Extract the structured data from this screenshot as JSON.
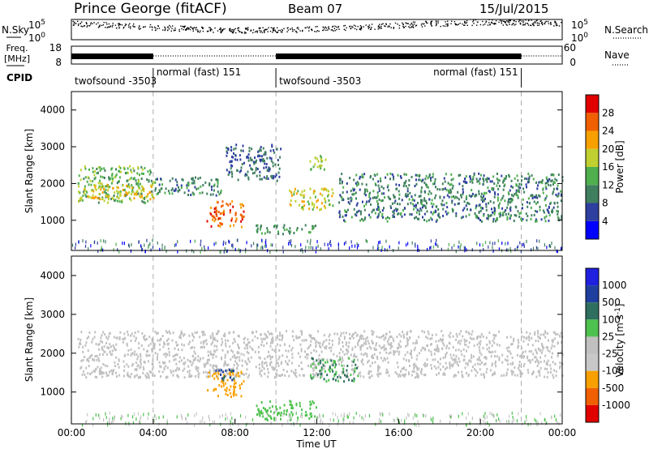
{
  "header": {
    "title": "Prince George (fitACF)",
    "beam": "Beam 07",
    "date": "15/Jul/2015"
  },
  "summary_panels": {
    "nsky_label": "N.Sky",
    "nsearch_label": "N.Search",
    "exp_ticks": [
      {
        "base": "10",
        "exp": "5"
      },
      {
        "base": "10",
        "exp": "0"
      }
    ],
    "freq_label_1": "Freq.",
    "freq_label_2": "[MHz]",
    "freq_ticks": [
      "18",
      "8"
    ],
    "nave_label": "Nave",
    "nave_ticks": [
      "60",
      "0"
    ],
    "cpid_label": "CPID",
    "cpid_segments": [
      {
        "start_h": 0.0,
        "end_h": 4.0,
        "label": "twofsound -3503"
      },
      {
        "start_h": 4.0,
        "end_h": 10.0,
        "label": "normal (fast) 151"
      },
      {
        "start_h": 10.0,
        "end_h": 22.0,
        "label": "twofsound -3503"
      },
      {
        "start_h": 22.0,
        "end_h": 24.0,
        "label": "normal (fast) 151"
      }
    ]
  },
  "colors": {
    "power": [
      "#0000ff",
      "#2f3f9f",
      "#3f7f5f",
      "#4faf4f",
      "#bfd030",
      "#f8a000",
      "#f06000",
      "#e00000"
    ],
    "velocity": [
      "#e00000",
      "#f06000",
      "#f8a000",
      "#c8c8c8",
      "#c0c0c0",
      "#4ec24e",
      "#2f6f5f",
      "#1f3f9f",
      "#2020e0"
    ]
  },
  "chart_data": [
    {
      "type": "heatmap",
      "panel": "power",
      "ylabel": "Slant Range [km]",
      "xlim": [
        0,
        24
      ],
      "ylim": [
        180,
        4500
      ],
      "yticks": [
        "1000",
        "2000",
        "3000",
        "4000"
      ],
      "colorbar_label": "Power [dB]",
      "colorbar_ticks": [
        "4",
        "8",
        "12",
        "16",
        "20",
        "24",
        "28"
      ],
      "features": [
        {
          "t": [
            0.3,
            4.0
          ],
          "r": [
            1500,
            2500
          ],
          "value": 14
        },
        {
          "t": [
            0.3,
            4.0
          ],
          "r": [
            1600,
            2000
          ],
          "value": 20
        },
        {
          "t": [
            4.0,
            7.3
          ],
          "r": [
            1700,
            2200
          ],
          "value": 10
        },
        {
          "t": [
            6.6,
            8.4
          ],
          "r": [
            850,
            1550
          ],
          "value": 26
        },
        {
          "t": [
            7.5,
            10.2
          ],
          "r": [
            2100,
            3100
          ],
          "value": 8
        },
        {
          "t": [
            10.6,
            12.8
          ],
          "r": [
            1300,
            1900
          ],
          "value": 18
        },
        {
          "t": [
            11.4,
            12.4
          ],
          "r": [
            2400,
            2800
          ],
          "value": 16
        },
        {
          "t": [
            13.0,
            24.0
          ],
          "r": [
            1000,
            2300
          ],
          "value": 10
        },
        {
          "t": [
            9.0,
            12.0
          ],
          "r": [
            650,
            900
          ],
          "value": 12
        }
      ]
    },
    {
      "type": "heatmap",
      "panel": "velocity",
      "ylabel": "Slant Range [km]",
      "xlabel": "Time UT",
      "xlim": [
        0,
        24
      ],
      "ylim": [
        180,
        4500
      ],
      "yticks": [
        "1000",
        "2000",
        "3000",
        "4000"
      ],
      "xticks": [
        "00:00",
        "04:00",
        "08:00",
        "12:00",
        "16:00",
        "20:00",
        "00:00"
      ],
      "colorbar_label": "Velocity [m s",
      "colorbar_label_sup": "-1",
      "colorbar_ticks": [
        "1000",
        "500",
        "100",
        "25",
        "-25",
        "-100",
        "-500",
        "-1000"
      ],
      "features": [
        {
          "t": [
            0.3,
            24.0
          ],
          "r": [
            1400,
            2600
          ],
          "value": 0
        },
        {
          "t": [
            6.6,
            8.4
          ],
          "r": [
            900,
            1550
          ],
          "value": -250
        },
        {
          "t": [
            7.0,
            8.0
          ],
          "r": [
            1300,
            1600
          ],
          "value": 500
        },
        {
          "t": [
            11.6,
            14.0
          ],
          "r": [
            1300,
            1900
          ],
          "value": 100
        },
        {
          "t": [
            9.0,
            12.0
          ],
          "r": [
            300,
            800
          ],
          "value": 60
        }
      ]
    }
  ]
}
